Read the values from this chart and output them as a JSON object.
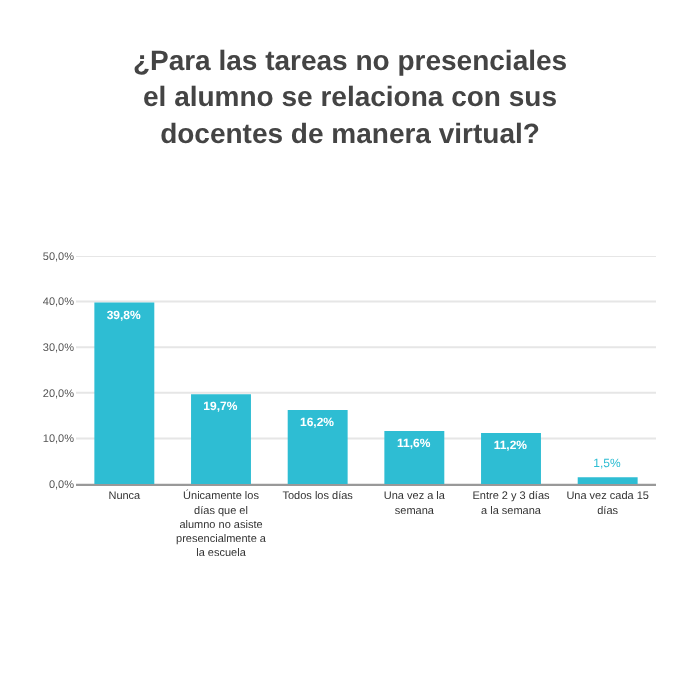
{
  "chart_data": {
    "type": "bar",
    "title": "¿Para las tareas no presenciales el alumno se relaciona con sus docentes de manera virtual?",
    "categories": [
      "Nunca",
      "Únicamente los días que el alumno no asiste presencialmente a la escuela",
      "Todos los días",
      "Una vez a la semana",
      "Entre 2 y 3 días a la semana",
      "Una vez cada 15 días"
    ],
    "values": [
      39.8,
      19.7,
      16.2,
      11.6,
      11.2,
      1.5
    ],
    "value_labels": [
      "39,8%",
      "19,7%",
      "16,2%",
      "11,6%",
      "11,2%",
      "1,5%"
    ],
    "color": "#2ebdd3",
    "ylim": [
      0,
      50
    ],
    "yticks": [
      {
        "value": 0,
        "label": "0,0%"
      },
      {
        "value": 10,
        "label": "10,0%"
      },
      {
        "value": 20,
        "label": "20,0%"
      },
      {
        "value": 30,
        "label": "30,0%"
      },
      {
        "value": 40,
        "label": "40,0%"
      },
      {
        "value": 50,
        "label": "50,0%"
      }
    ],
    "grid": "y"
  }
}
